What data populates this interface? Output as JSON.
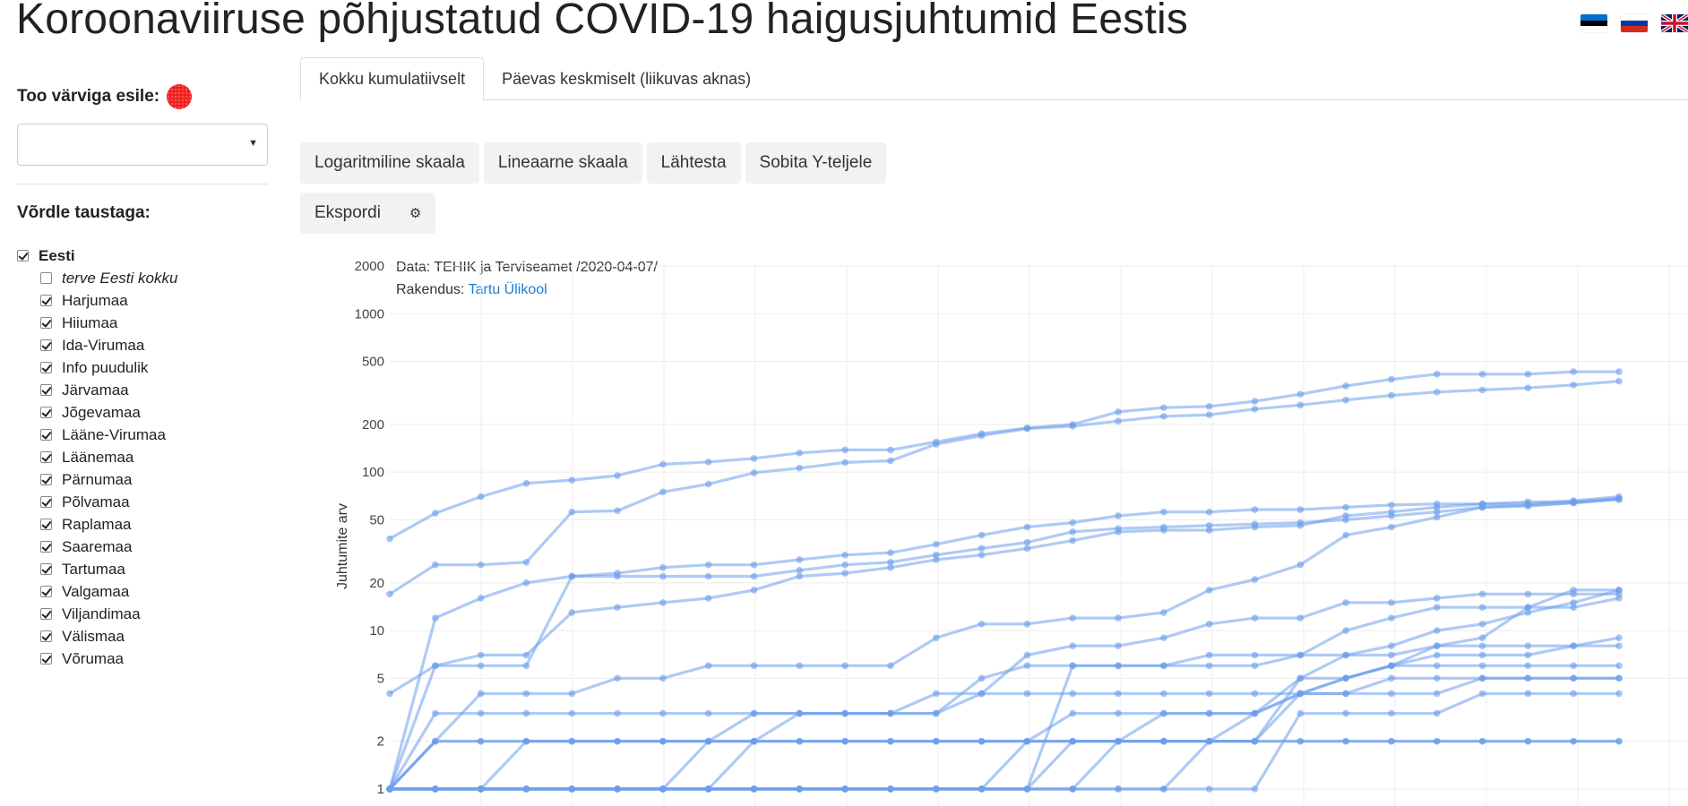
{
  "title": "Koroonaviiruse põhjustatud COVID-19 haigusjuhtumid Eestis",
  "flags": [
    "flag-estonia",
    "flag-russia",
    "flag-uk"
  ],
  "sidebar": {
    "highlight_label": "Too värviga esile:",
    "highlight_color": "#f21c1c",
    "select_value": "",
    "compare_label": "Võrdle taustaga:",
    "items": [
      {
        "label": "Eesti",
        "checked": true,
        "indent": false,
        "style": "bold"
      },
      {
        "label": "terve Eesti kokku",
        "checked": false,
        "indent": true,
        "style": "italic"
      },
      {
        "label": "Harjumaa",
        "checked": true,
        "indent": true,
        "style": ""
      },
      {
        "label": "Hiiumaa",
        "checked": true,
        "indent": true,
        "style": ""
      },
      {
        "label": "Ida-Virumaa",
        "checked": true,
        "indent": true,
        "style": ""
      },
      {
        "label": "Info puudulik",
        "checked": true,
        "indent": true,
        "style": ""
      },
      {
        "label": "Järvamaa",
        "checked": true,
        "indent": true,
        "style": ""
      },
      {
        "label": "Jõgevamaa",
        "checked": true,
        "indent": true,
        "style": ""
      },
      {
        "label": "Lääne-Virumaa",
        "checked": true,
        "indent": true,
        "style": ""
      },
      {
        "label": "Läänemaa",
        "checked": true,
        "indent": true,
        "style": ""
      },
      {
        "label": "Pärnumaa",
        "checked": true,
        "indent": true,
        "style": ""
      },
      {
        "label": "Põlvamaa",
        "checked": true,
        "indent": true,
        "style": ""
      },
      {
        "label": "Raplamaa",
        "checked": true,
        "indent": true,
        "style": ""
      },
      {
        "label": "Saaremaa",
        "checked": true,
        "indent": true,
        "style": ""
      },
      {
        "label": "Tartumaa",
        "checked": true,
        "indent": true,
        "style": ""
      },
      {
        "label": "Valgamaa",
        "checked": true,
        "indent": true,
        "style": ""
      },
      {
        "label": "Viljandimaa",
        "checked": true,
        "indent": true,
        "style": ""
      },
      {
        "label": "Välismaa",
        "checked": true,
        "indent": true,
        "style": ""
      },
      {
        "label": "Võrumaa",
        "checked": true,
        "indent": true,
        "style": ""
      }
    ]
  },
  "tabs": [
    {
      "label": "Kokku kumulatiivselt",
      "active": true
    },
    {
      "label": "Päevas keskmiselt (liikuvas aknas)",
      "active": false
    }
  ],
  "buttons": {
    "log_scale": "Logaritmiline skaala",
    "linear_scale": "Lineaarne skaala",
    "reset": "Lähtesta",
    "fit_y": "Sobita Y-teljele",
    "export": "Ekspordi"
  },
  "chart_note": {
    "data_text": "Data: TEHIK ja Terviseamet /2020-04-07/",
    "app_prefix": "Rakendus: ",
    "app_link": "Tartu Ülikool"
  },
  "chart_data": {
    "type": "line",
    "ylabel": "Juhtumite arv",
    "xlabel": "",
    "y_scale": "log",
    "ylim": [
      1,
      2000
    ],
    "y_ticks": [
      1,
      2,
      5,
      10,
      20,
      50,
      100,
      200,
      500,
      1000,
      2000
    ],
    "line_color": "#6d9eeb",
    "x": [
      0,
      1,
      2,
      3,
      4,
      5,
      6,
      7,
      8,
      9,
      10,
      11,
      12,
      13,
      14,
      15,
      16,
      17,
      18,
      19,
      20,
      21,
      22,
      23,
      24,
      25,
      26,
      27
    ],
    "series": [
      {
        "values": [
          38,
          55,
          70,
          85,
          89,
          95,
          112,
          116,
          122,
          132,
          138,
          138,
          155,
          175,
          190,
          200,
          240,
          255,
          260,
          280,
          310,
          350,
          385,
          415,
          415,
          415,
          430,
          430
        ]
      },
      {
        "values": [
          17,
          26,
          26,
          27,
          56,
          57,
          75,
          84,
          99,
          106,
          115,
          118,
          150,
          170,
          188,
          195,
          210,
          225,
          230,
          250,
          265,
          285,
          305,
          320,
          330,
          340,
          355,
          375
        ]
      },
      {
        "values": [
          4,
          6,
          6,
          6,
          22,
          22,
          22,
          22,
          22,
          24,
          26,
          27,
          30,
          33,
          36,
          42,
          44,
          45,
          46,
          47,
          48,
          50,
          53,
          56,
          60,
          62,
          64,
          67
        ]
      },
      {
        "values": [
          1,
          12,
          16,
          20,
          22,
          23,
          25,
          26,
          26,
          28,
          30,
          31,
          35,
          40,
          45,
          48,
          53,
          56,
          56,
          58,
          58,
          60,
          62,
          63,
          63,
          65,
          65,
          68
        ]
      },
      {
        "values": [
          1,
          6,
          7,
          7,
          13,
          14,
          15,
          16,
          18,
          22,
          23,
          25,
          28,
          30,
          33,
          37,
          42,
          43,
          43,
          45,
          46,
          53,
          56,
          60,
          63,
          63,
          66,
          70
        ]
      },
      {
        "values": [
          1,
          2,
          4,
          4,
          4,
          5,
          5,
          6,
          6,
          6,
          6,
          6,
          9,
          11,
          11,
          12,
          12,
          13,
          18,
          21,
          26,
          40,
          45,
          52,
          60,
          61,
          64,
          68
        ]
      },
      {
        "values": [
          1,
          1,
          1,
          1,
          1,
          1,
          1,
          1,
          1,
          1,
          1,
          1,
          1,
          1,
          1,
          1,
          2,
          2,
          2,
          2,
          4,
          5,
          6,
          8,
          9,
          14,
          18,
          18
        ]
      },
      {
        "values": [
          1,
          1,
          1,
          2,
          2,
          2,
          2,
          2,
          2,
          2,
          2,
          2,
          2,
          2,
          2,
          2,
          2,
          2,
          2,
          2,
          5,
          7,
          8,
          10,
          11,
          13,
          15,
          18
        ]
      },
      {
        "values": [
          1,
          1,
          1,
          1,
          1,
          1,
          1,
          1,
          2,
          3,
          3,
          3,
          3,
          4,
          7,
          8,
          8,
          9,
          11,
          12,
          12,
          15,
          15,
          16,
          17,
          17,
          17,
          17
        ]
      },
      {
        "values": [
          1,
          2,
          2,
          2,
          2,
          2,
          2,
          2,
          2,
          2,
          2,
          2,
          2,
          2,
          2,
          2,
          2,
          2,
          2,
          3,
          5,
          5,
          6,
          7,
          7,
          7,
          8,
          9
        ]
      },
      {
        "values": [
          1,
          1,
          1,
          1,
          1,
          1,
          1,
          1,
          1,
          1,
          1,
          1,
          1,
          1,
          1,
          6,
          6,
          6,
          7,
          7,
          7,
          7,
          7,
          8,
          8,
          8,
          8,
          8
        ]
      },
      {
        "values": [
          1,
          3,
          3,
          3,
          3,
          3,
          3,
          3,
          3,
          3,
          3,
          3,
          3,
          5,
          6,
          6,
          6,
          6,
          6,
          6,
          7,
          10,
          12,
          14,
          14,
          14,
          14,
          16
        ]
      },
      {
        "values": [
          1,
          2,
          2,
          2,
          2,
          2,
          2,
          2,
          3,
          3,
          3,
          3,
          4,
          4,
          4,
          4,
          4,
          4,
          4,
          4,
          4,
          5,
          6,
          6,
          6,
          6,
          6,
          6
        ]
      },
      {
        "values": [
          1,
          1,
          1,
          1,
          1,
          1,
          1,
          1,
          1,
          1,
          1,
          1,
          1,
          1,
          2,
          3,
          3,
          3,
          3,
          3,
          4,
          4,
          5,
          5,
          5,
          5,
          5,
          5
        ]
      },
      {
        "values": [
          1,
          1,
          1,
          1,
          1,
          1,
          1,
          1,
          1,
          1,
          1,
          1,
          1,
          1,
          1,
          2,
          2,
          3,
          3,
          3,
          4,
          4,
          4,
          4,
          5,
          5,
          5,
          5
        ]
      },
      {
        "values": [
          1,
          1,
          1,
          1,
          1,
          1,
          1,
          1,
          1,
          1,
          1,
          1,
          1,
          1,
          1,
          1,
          1,
          1,
          2,
          2,
          2,
          2,
          2,
          2,
          2,
          2,
          2,
          2
        ]
      },
      {
        "values": [
          1,
          1,
          1,
          1,
          1,
          1,
          1,
          1,
          1,
          1,
          1,
          1,
          1,
          1,
          1,
          1,
          1,
          1,
          1,
          1,
          3,
          3,
          3,
          3,
          4,
          4,
          4,
          4
        ]
      },
      {
        "values": [
          1,
          1,
          1,
          1,
          1,
          1,
          1,
          2,
          2,
          2,
          2,
          2,
          2,
          2,
          2,
          2,
          2,
          2,
          2,
          2,
          2,
          2,
          2,
          2,
          2,
          2,
          2,
          2
        ]
      }
    ]
  }
}
